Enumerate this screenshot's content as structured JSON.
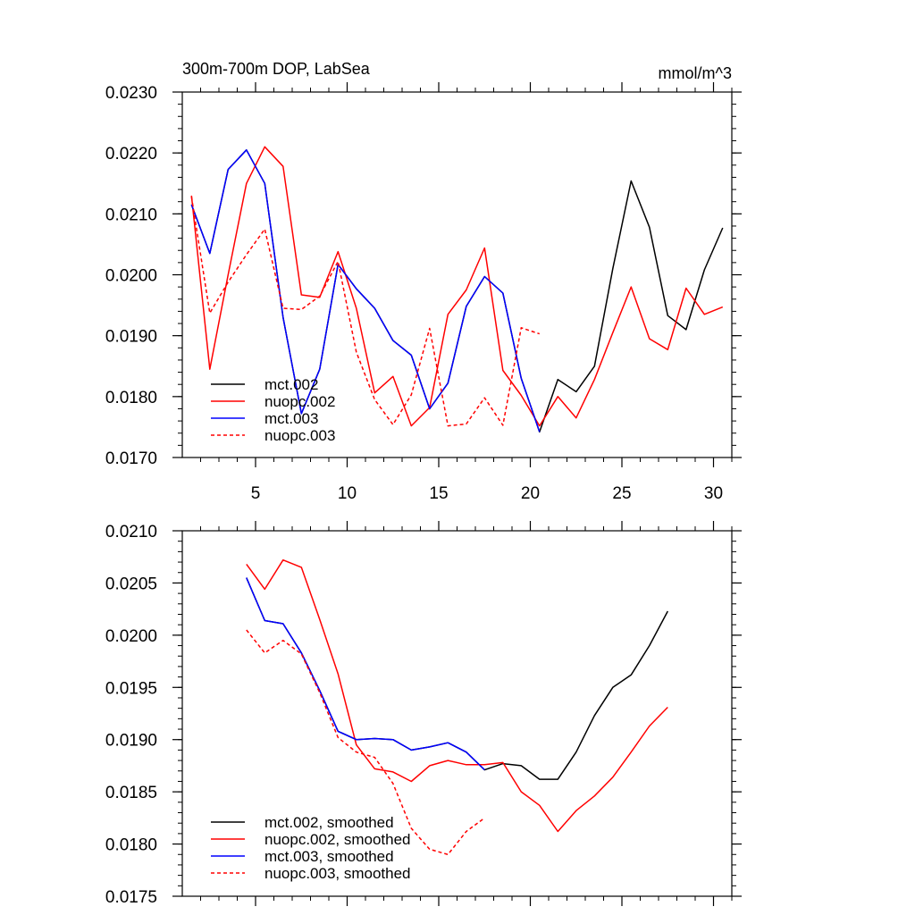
{
  "chart_data": [
    {
      "type": "line",
      "title": "300m-700m DOP, LabSea",
      "units": "mmol/m^3",
      "xlim": [
        1,
        31
      ],
      "ylim": [
        0.017,
        0.023
      ],
      "xticks": [
        5,
        10,
        15,
        20,
        25,
        30
      ],
      "xtick_labels": [
        "5",
        "10",
        "15",
        "20",
        "25",
        "30"
      ],
      "yticks": [
        0.017,
        0.018,
        0.019,
        0.02,
        0.021,
        0.022,
        0.023
      ],
      "ytick_labels": [
        "0.0170",
        "0.0180",
        "0.0190",
        "0.0200",
        "0.0210",
        "0.0220",
        "0.0230"
      ],
      "legend_position": "lower-left",
      "series": [
        {
          "name": "mct.002",
          "color": "#000000",
          "dash": "solid",
          "x": [
            1.5,
            2.5,
            3.5,
            4.5,
            5.5,
            6.5,
            7.5,
            8.5,
            9.5,
            10.5,
            11.5,
            12.5,
            13.5,
            14.5,
            15.5,
            16.5,
            17.5,
            18.5,
            19.5,
            20.5,
            21.5,
            22.5,
            23.5,
            24.5,
            25.5,
            26.5,
            27.5,
            28.5,
            29.5,
            30.5
          ],
          "values": [
            0.02115,
            0.02035,
            0.02173,
            0.02205,
            0.0215,
            0.0193,
            0.01772,
            0.01845,
            0.02017,
            0.01977,
            0.01945,
            0.01892,
            0.01868,
            0.0178,
            0.01822,
            0.01948,
            0.01997,
            0.0197,
            0.0183,
            0.01742,
            0.01828,
            0.01808,
            0.0185,
            0.0201,
            0.02154,
            0.02078,
            0.01933,
            0.0191,
            0.02008,
            0.02077
          ]
        },
        {
          "name": "nuopc.002",
          "color": "#ff0000",
          "dash": "solid",
          "x": [
            1.5,
            2.5,
            3.5,
            4.5,
            5.5,
            6.5,
            7.5,
            8.5,
            9.5,
            10.5,
            11.5,
            12.5,
            13.5,
            14.5,
            15.5,
            16.5,
            17.5,
            18.5,
            19.5,
            20.5,
            21.5,
            22.5,
            23.5,
            24.5,
            25.5,
            26.5,
            27.5,
            28.5,
            29.5,
            30.5
          ],
          "values": [
            0.0213,
            0.01845,
            0.02,
            0.0215,
            0.0221,
            0.02178,
            0.01967,
            0.01963,
            0.02038,
            0.01945,
            0.01806,
            0.01833,
            0.01752,
            0.01782,
            0.01935,
            0.01975,
            0.02044,
            0.01843,
            0.01802,
            0.01752,
            0.018,
            0.01765,
            0.01828,
            0.01905,
            0.0198,
            0.01895,
            0.01877,
            0.01978,
            0.01935,
            0.01947
          ]
        },
        {
          "name": "mct.003",
          "color": "#0000ff",
          "dash": "solid",
          "x": [
            1.5,
            2.5,
            3.5,
            4.5,
            5.5,
            6.5,
            7.5,
            8.5,
            9.5,
            10.5,
            11.5,
            12.5,
            13.5,
            14.5,
            15.5,
            16.5,
            17.5,
            18.5,
            19.5,
            20.5
          ],
          "values": [
            0.02115,
            0.02035,
            0.02173,
            0.02205,
            0.0215,
            0.0193,
            0.01772,
            0.01845,
            0.02017,
            0.01977,
            0.01945,
            0.01892,
            0.01868,
            0.0178,
            0.01822,
            0.01948,
            0.01997,
            0.0197,
            0.0183,
            0.01742
          ]
        },
        {
          "name": "nuopc.003",
          "color": "#ff0000",
          "dash": "dashed",
          "x": [
            1.5,
            2.5,
            3.5,
            4.5,
            5.5,
            6.5,
            7.5,
            8.5,
            9.5,
            10.5,
            11.5,
            12.5,
            13.5,
            14.5,
            15.5,
            16.5,
            17.5,
            18.5,
            19.5,
            20.5
          ],
          "values": [
            0.02128,
            0.01937,
            0.01988,
            0.02033,
            0.02075,
            0.01945,
            0.01943,
            0.01965,
            0.02022,
            0.01873,
            0.01795,
            0.01754,
            0.01803,
            0.01912,
            0.01752,
            0.01755,
            0.01798,
            0.01753,
            0.01913,
            0.01903
          ]
        }
      ]
    },
    {
      "type": "line",
      "title": "",
      "units": "",
      "xlim": [
        1,
        31
      ],
      "ylim": [
        0.0175,
        0.021
      ],
      "xticks": [
        5,
        10,
        15,
        20,
        25,
        30
      ],
      "xtick_labels": [],
      "yticks": [
        0.0175,
        0.018,
        0.0185,
        0.019,
        0.0195,
        0.02,
        0.0205,
        0.021
      ],
      "ytick_labels": [
        "0.0175",
        "0.0180",
        "0.0185",
        "0.0190",
        "0.0195",
        "0.0200",
        "0.0205",
        "0.0210"
      ],
      "legend_position": "lower-left",
      "series": [
        {
          "name": "mct.002, smoothed",
          "color": "#000000",
          "dash": "solid",
          "x": [
            4.5,
            5.5,
            6.5,
            7.5,
            8.5,
            9.5,
            10.5,
            11.5,
            12.5,
            13.5,
            14.5,
            15.5,
            16.5,
            17.5,
            18.5,
            19.5,
            20.5,
            21.5,
            22.5,
            23.5,
            24.5,
            25.5,
            26.5,
            27.5
          ],
          "values": [
            0.02055,
            0.02014,
            0.02011,
            0.01983,
            0.01947,
            0.01908,
            0.019,
            0.01901,
            0.019,
            0.0189,
            0.01893,
            0.01897,
            0.01888,
            0.01871,
            0.01877,
            0.01875,
            0.01862,
            0.01862,
            0.01888,
            0.01923,
            0.0195,
            0.01962,
            0.0199,
            0.02023
          ]
        },
        {
          "name": "nuopc.002, smoothed",
          "color": "#ff0000",
          "dash": "solid",
          "x": [
            4.5,
            5.5,
            6.5,
            7.5,
            8.5,
            9.5,
            10.5,
            11.5,
            12.5,
            13.5,
            14.5,
            15.5,
            16.5,
            17.5,
            18.5,
            19.5,
            20.5,
            21.5,
            22.5,
            23.5,
            24.5,
            25.5,
            26.5,
            27.5
          ],
          "values": [
            0.02068,
            0.02044,
            0.02072,
            0.02065,
            0.02015,
            0.01963,
            0.01895,
            0.01872,
            0.01869,
            0.0186,
            0.01875,
            0.0188,
            0.01876,
            0.01876,
            0.01878,
            0.0185,
            0.01837,
            0.01812,
            0.01832,
            0.01846,
            0.01864,
            0.01888,
            0.01913,
            0.01931
          ]
        },
        {
          "name": "mct.003, smoothed",
          "color": "#0000ff",
          "dash": "solid",
          "x": [
            4.5,
            5.5,
            6.5,
            7.5,
            8.5,
            9.5,
            10.5,
            11.5,
            12.5,
            13.5,
            14.5,
            15.5,
            16.5,
            17.5
          ],
          "values": [
            0.02055,
            0.02014,
            0.02011,
            0.01983,
            0.01947,
            0.01908,
            0.019,
            0.01901,
            0.019,
            0.0189,
            0.01893,
            0.01897,
            0.01888,
            0.01871
          ]
        },
        {
          "name": "nuopc.003, smoothed",
          "color": "#ff0000",
          "dash": "dashed",
          "x": [
            4.5,
            5.5,
            6.5,
            7.5,
            8.5,
            9.5,
            10.5,
            11.5,
            12.5,
            13.5,
            14.5,
            15.5,
            16.5,
            17.5
          ],
          "values": [
            0.02005,
            0.01983,
            0.01995,
            0.01982,
            0.01945,
            0.01902,
            0.01888,
            0.01883,
            0.01858,
            0.01815,
            0.01795,
            0.0179,
            0.01812,
            0.01825
          ]
        }
      ]
    }
  ]
}
